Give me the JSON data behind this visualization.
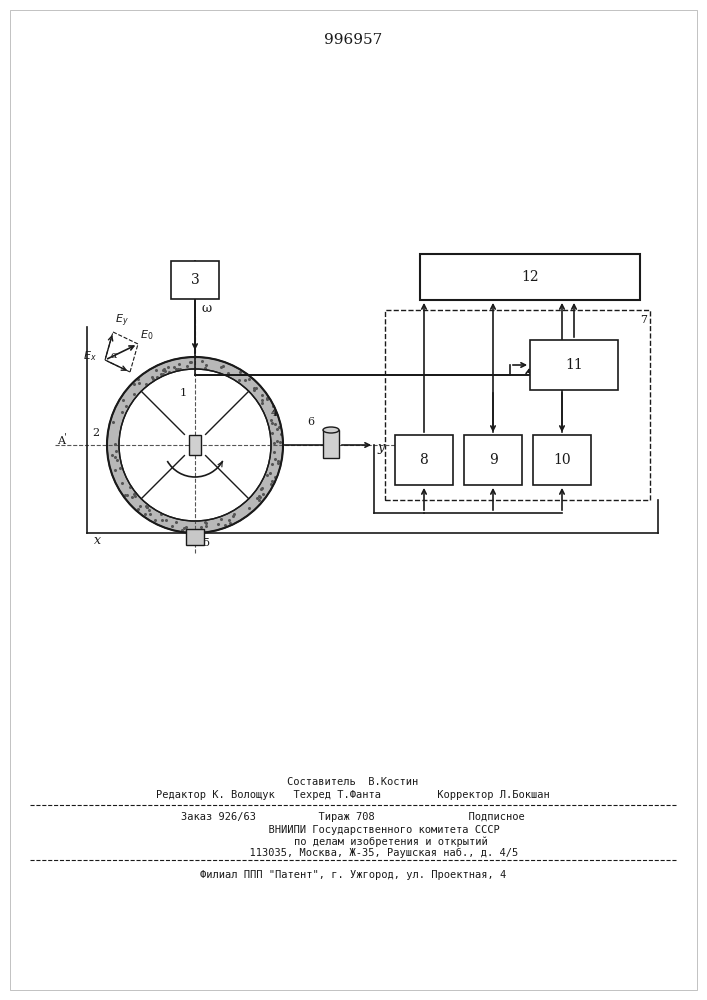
{
  "title": "996957",
  "bg_color": "#ffffff",
  "line_color": "#1a1a1a",
  "font_size_title": 11,
  "footer_lines": [
    "Составитель  В.Костин",
    "Редактор К. Волощук   Техред Т.Фанта         Корректор Л.Бокшан",
    "Заказ 926/63          Тираж 708               Подписное",
    "          ВНИИПИ Государственного комитета СССР",
    "            по делам изобретения и открытий",
    "          113035, Москва, Ж-35, Раушская наб., д. 4/5",
    "Филиал ППП \"Патент\", г. Ужгород, ул. Проектная, 4"
  ]
}
